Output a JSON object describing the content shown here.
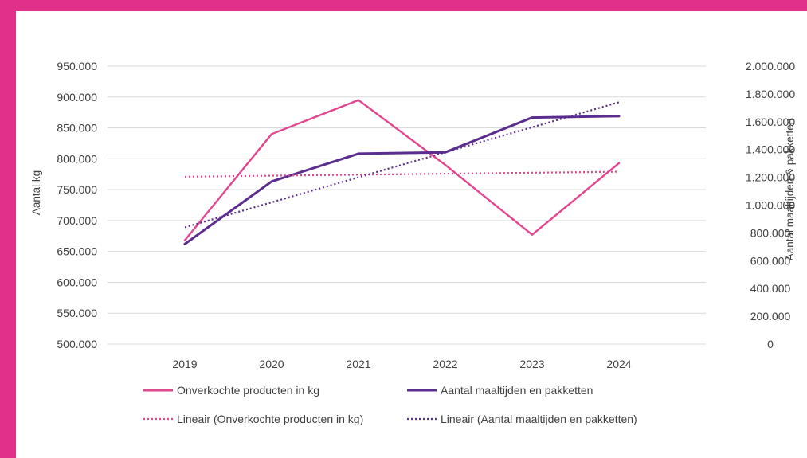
{
  "chart_data": {
    "type": "line",
    "categories": [
      "2019",
      "2020",
      "2021",
      "2022",
      "2023",
      "2024"
    ],
    "series": [
      {
        "name": "Onverkochte producten in kg",
        "axis": "left",
        "style": "solid",
        "color": "#e1468f",
        "values": [
          668000,
          840000,
          895000,
          790000,
          677000,
          793000
        ]
      },
      {
        "name": "Aantal maaltijden en pakketten",
        "axis": "right",
        "style": "solid",
        "color": "#5b2d8e",
        "values": [
          720000,
          1170000,
          1370000,
          1380000,
          1630000,
          1640000
        ]
      },
      {
        "name": "Lineair (Onverkochte producten in kg)",
        "axis": "left",
        "style": "dotted",
        "color": "#e1468f",
        "values": [
          771000,
          772600,
          774200,
          775800,
          777400,
          779000
        ]
      },
      {
        "name": "Lineair (Aantal maaltijden en pakketten)",
        "axis": "right",
        "style": "dotted",
        "color": "#5b2d8e",
        "values": [
          840000,
          1020000,
          1200000,
          1380000,
          1560000,
          1740000
        ]
      }
    ],
    "left_axis": {
      "title": "Aantal kg",
      "range": [
        500000,
        950000
      ],
      "ticks": [
        "500.000",
        "550.000",
        "600.000",
        "650.000",
        "700.000",
        "750.000",
        "800.000",
        "850.000",
        "900.000",
        "950.000"
      ]
    },
    "right_axis": {
      "title": "Aantal maaltijden & pakketten",
      "range": [
        0,
        2000000
      ],
      "ticks": [
        "0",
        "200.000",
        "400.000",
        "600.000",
        "800.000",
        "1.000.000",
        "1.200.000",
        "1.400.000",
        "1.600.000",
        "1.800.000",
        "2.000.000"
      ]
    },
    "grid": "horizontal",
    "legend_position": "bottom"
  }
}
